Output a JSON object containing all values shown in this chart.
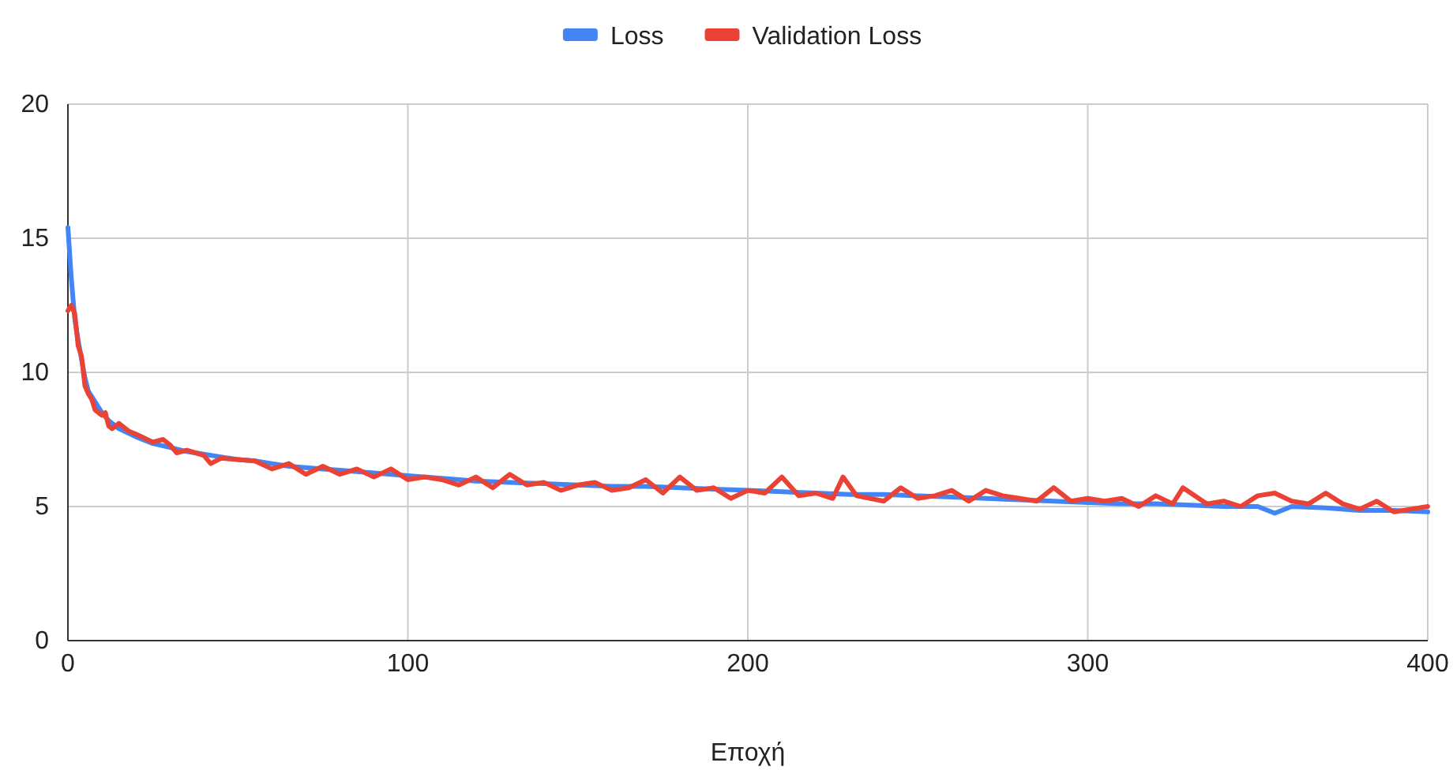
{
  "chart_data": {
    "type": "line",
    "xlabel": "Εποχή",
    "xlim": [
      0,
      400
    ],
    "xticks": [
      0,
      100,
      200,
      300,
      400
    ],
    "ylim": [
      0,
      20
    ],
    "yticks": [
      0,
      5,
      10,
      15,
      20
    ],
    "grid": true,
    "legend": "top",
    "line_style": "solid",
    "marker": "none",
    "series": [
      {
        "name": "Loss",
        "color": "#4285f4",
        "x": [
          0,
          1,
          2,
          3,
          4,
          5,
          6,
          8,
          10,
          12,
          15,
          20,
          25,
          30,
          35,
          40,
          45,
          50,
          55,
          60,
          65,
          70,
          75,
          80,
          85,
          90,
          95,
          100,
          110,
          120,
          130,
          140,
          150,
          160,
          170,
          180,
          190,
          200,
          210,
          220,
          230,
          240,
          250,
          260,
          270,
          280,
          290,
          300,
          310,
          320,
          330,
          340,
          350,
          355,
          360,
          370,
          380,
          390,
          400
        ],
        "values": [
          15.4,
          13.5,
          12.0,
          11.2,
          10.5,
          9.8,
          9.3,
          8.9,
          8.5,
          8.2,
          7.9,
          7.6,
          7.35,
          7.2,
          7.05,
          6.95,
          6.85,
          6.75,
          6.7,
          6.6,
          6.5,
          6.45,
          6.4,
          6.35,
          6.3,
          6.25,
          6.2,
          6.15,
          6.05,
          5.95,
          5.9,
          5.85,
          5.8,
          5.75,
          5.75,
          5.7,
          5.65,
          5.6,
          5.55,
          5.5,
          5.45,
          5.45,
          5.4,
          5.35,
          5.3,
          5.25,
          5.2,
          5.15,
          5.1,
          5.1,
          5.05,
          5.0,
          5.0,
          4.75,
          5.0,
          4.95,
          4.85,
          4.85,
          4.8
        ]
      },
      {
        "name": "Validation Loss",
        "color": "#ea4335",
        "x": [
          0,
          1,
          2,
          3,
          4,
          5,
          6,
          7,
          8,
          10,
          11,
          12,
          13,
          15,
          18,
          20,
          25,
          28,
          30,
          32,
          35,
          40,
          42,
          45,
          50,
          55,
          60,
          65,
          70,
          75,
          80,
          85,
          90,
          95,
          100,
          105,
          110,
          115,
          120,
          125,
          130,
          135,
          140,
          145,
          150,
          155,
          160,
          165,
          170,
          175,
          180,
          185,
          190,
          195,
          200,
          205,
          210,
          215,
          220,
          225,
          228,
          232,
          240,
          245,
          250,
          255,
          260,
          265,
          270,
          275,
          280,
          285,
          290,
          295,
          300,
          305,
          310,
          315,
          320,
          325,
          328,
          335,
          340,
          345,
          350,
          355,
          360,
          365,
          370,
          375,
          380,
          385,
          390,
          395,
          400
        ],
        "values": [
          12.3,
          12.5,
          12.2,
          11.0,
          10.6,
          9.5,
          9.2,
          9.0,
          8.6,
          8.4,
          8.5,
          8.0,
          7.9,
          8.1,
          7.8,
          7.7,
          7.4,
          7.5,
          7.3,
          7.0,
          7.1,
          6.9,
          6.6,
          6.8,
          6.75,
          6.7,
          6.4,
          6.6,
          6.2,
          6.5,
          6.2,
          6.4,
          6.1,
          6.4,
          6.0,
          6.1,
          6.0,
          5.8,
          6.1,
          5.7,
          6.2,
          5.8,
          5.9,
          5.6,
          5.8,
          5.9,
          5.6,
          5.7,
          6.0,
          5.5,
          6.1,
          5.6,
          5.7,
          5.3,
          5.6,
          5.5,
          6.1,
          5.4,
          5.5,
          5.3,
          6.1,
          5.4,
          5.2,
          5.7,
          5.3,
          5.4,
          5.6,
          5.2,
          5.6,
          5.4,
          5.3,
          5.2,
          5.7,
          5.2,
          5.3,
          5.2,
          5.3,
          5.0,
          5.4,
          5.1,
          5.7,
          5.1,
          5.2,
          5.0,
          5.4,
          5.5,
          5.2,
          5.1,
          5.5,
          5.1,
          4.9,
          5.2,
          4.8,
          4.9,
          5.0
        ]
      }
    ]
  }
}
